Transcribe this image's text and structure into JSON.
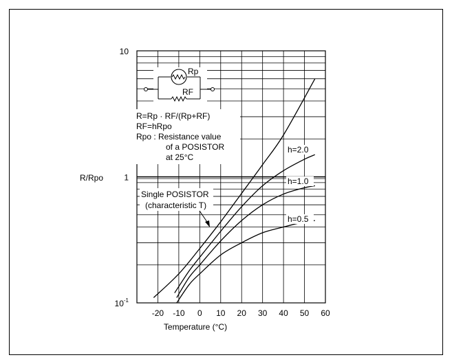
{
  "chart_data": {
    "type": "line",
    "xlabel": "Temperature (°C)",
    "ylabel": "R/Rpo",
    "xlim": [
      -30,
      60
    ],
    "ylim": [
      0.1,
      10
    ],
    "yscale": "log",
    "xticks": [
      -20,
      -10,
      0,
      10,
      20,
      30,
      40,
      50,
      60
    ],
    "xtick_labels": [
      "-20",
      "-10",
      "0",
      "10",
      "20",
      "30",
      "40",
      "50",
      "60"
    ],
    "yticks": [
      0.1,
      1,
      10
    ],
    "ytick_labels": {
      "base": [
        "10",
        "1",
        "10"
      ],
      "exponent": [
        "-1",
        "",
        ""
      ]
    },
    "grid": true,
    "series": [
      {
        "name": "Single POSISTOR (characteristic T)",
        "x": [
          -22,
          -10,
          0,
          10,
          20,
          30,
          40,
          55
        ],
        "y": [
          0.11,
          0.17,
          0.27,
          0.44,
          0.74,
          1.25,
          2.15,
          6.0
        ]
      },
      {
        "name": "h=2.0",
        "x": [
          -12,
          -5,
          0,
          10,
          20,
          30,
          40,
          50,
          55
        ],
        "y": [
          0.12,
          0.18,
          0.23,
          0.37,
          0.58,
          0.85,
          1.12,
          1.38,
          1.5
        ]
      },
      {
        "name": "h=1.0",
        "x": [
          -11,
          -5,
          0,
          10,
          20,
          30,
          40,
          50,
          55
        ],
        "y": [
          0.11,
          0.16,
          0.2,
          0.31,
          0.45,
          0.6,
          0.73,
          0.82,
          0.85
        ]
      },
      {
        "name": "h=0.5",
        "x": [
          -11,
          -5,
          0,
          10,
          20,
          30,
          40,
          50,
          55
        ],
        "y": [
          0.1,
          0.14,
          0.17,
          0.24,
          0.3,
          0.36,
          0.4,
          0.44,
          0.45
        ]
      }
    ],
    "annotations": {
      "h20": "h=2.0",
      "h10": "h=1.0",
      "h05": "h=0.5",
      "single_line1": "Single POSISTOR",
      "single_line2": "(characteristic T)",
      "circuit_rp": "Rp",
      "circuit_rf": "RF",
      "formula1": "R=Rp · RF/(Rp+RF)",
      "formula2": "RF=hRpo",
      "formula3": "Rpo : Resistance value",
      "formula4": "of a POSISTOR",
      "formula5": "at 25°C"
    }
  }
}
